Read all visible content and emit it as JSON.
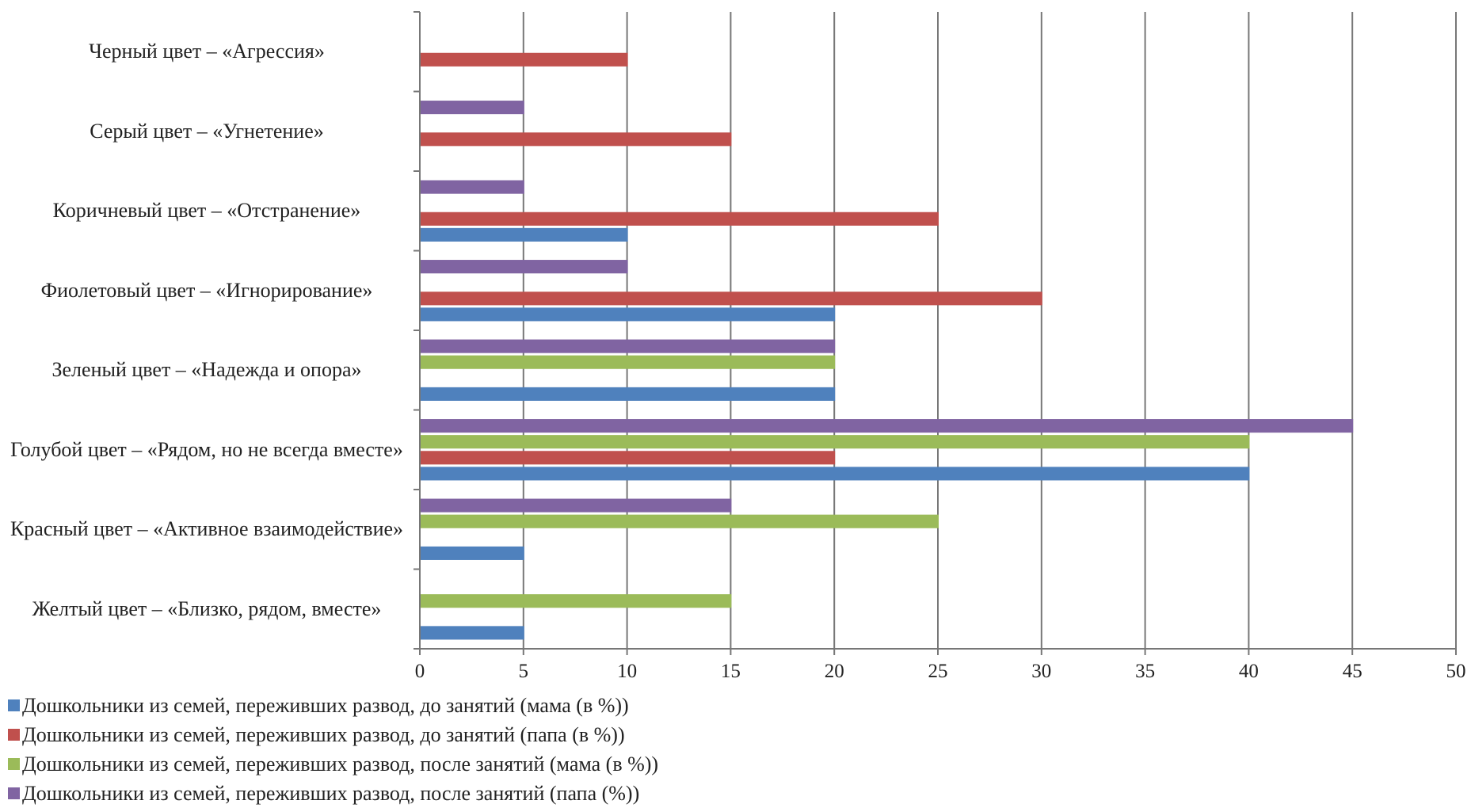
{
  "chart_data": {
    "type": "barh",
    "categories": [
      "Желтый цвет – «Близко, рядом, вместе»",
      "Красный цвет – «Активное взаимодействие»",
      "Голубой цвет – «Рядом, но не всегда вместе»",
      "Зеленый цвет – «Надежда и опора»",
      "Фиолетовый цвет – «Игнорирование»",
      "Коричневый цвет – «Отстранение»",
      "Серый цвет – «Угнетение»",
      "Черный цвет – «Агрессия»"
    ],
    "series": [
      {
        "name": "Дошкольники из семей, переживших развод, до занятий (мама (в %))",
        "color": "#4f81bd",
        "values": [
          5,
          5,
          40,
          20,
          20,
          10,
          0,
          0
        ]
      },
      {
        "name": "Дошкольники из семей, переживших развод, до занятий (папа (в %))",
        "color": "#c0504d",
        "values": [
          0,
          0,
          20,
          0,
          30,
          25,
          15,
          10
        ]
      },
      {
        "name": "Дошкольники из семей, переживших развод, после занятий (мама (в %))",
        "color": "#9bbb59",
        "values": [
          15,
          25,
          40,
          20,
          0,
          0,
          0,
          0
        ]
      },
      {
        "name": "Дошкольники из семей, переживших развод, после занятий (папа (%))",
        "color": "#8064a2",
        "values": [
          0,
          15,
          45,
          20,
          10,
          5,
          5,
          0
        ]
      }
    ],
    "xlim": [
      0,
      50
    ],
    "xticks": [
      0,
      5,
      10,
      15,
      20,
      25,
      30,
      35,
      40,
      45,
      50
    ],
    "grid": true,
    "legend": "bottom"
  }
}
